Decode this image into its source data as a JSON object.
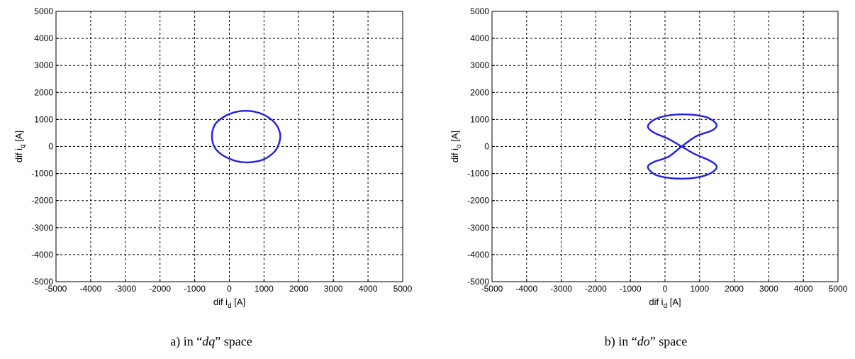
{
  "chart_data": [
    {
      "type": "line",
      "caption": {
        "prefix": "a) in “",
        "space": "dq",
        "suffix": "” space"
      },
      "xlabel": {
        "main": "dif i",
        "sub": "d",
        "unit": " [A]"
      },
      "ylabel": {
        "main": "dif i",
        "sub": "q",
        "unit": " [A]"
      },
      "xlim": [
        -5000,
        5000
      ],
      "ylim": [
        -5000,
        5000
      ],
      "xticks": [
        -5000,
        -4000,
        -3000,
        -2000,
        -1000,
        0,
        1000,
        2000,
        3000,
        4000,
        5000
      ],
      "yticks": [
        -5000,
        -4000,
        -3000,
        -2000,
        -1000,
        0,
        1000,
        2000,
        3000,
        4000,
        5000
      ],
      "grid": true,
      "series": [
        {
          "color": "#1f1fe6",
          "x": [
            1470,
            1435,
            1335,
            1180,
            985,
            750,
            490,
            230,
            -20,
            -240,
            -400,
            -480,
            -500,
            -480,
            -400,
            -240,
            -20,
            230,
            490,
            750,
            985,
            1180,
            1335,
            1435,
            1470
          ],
          "y": [
            380,
            610,
            840,
            1030,
            1180,
            1280,
            1320,
            1290,
            1190,
            1030,
            840,
            610,
            380,
            150,
            -80,
            -280,
            -440,
            -550,
            -590,
            -560,
            -480,
            -330,
            -140,
            120,
            380
          ]
        }
      ]
    },
    {
      "type": "line",
      "caption": {
        "prefix": "b) in “",
        "space": "do",
        "suffix": "” space"
      },
      "xlabel": {
        "main": "dif i",
        "sub": "d",
        "unit": " [A]"
      },
      "ylabel": {
        "main": "dif i",
        "sub": "o",
        "unit": " [A]"
      },
      "xlim": [
        -5000,
        5000
      ],
      "ylim": [
        -5000,
        5000
      ],
      "xticks": [
        -5000,
        -4000,
        -3000,
        -2000,
        -1000,
        0,
        1000,
        2000,
        3000,
        4000,
        5000
      ],
      "yticks": [
        -5000,
        -4000,
        -3000,
        -2000,
        -1000,
        0,
        1000,
        2000,
        3000,
        4000,
        5000
      ],
      "grid": true,
      "series": [
        {
          "color": "#1f1fe6",
          "x": [
            480,
            900,
            1300,
            1470,
            1470,
            1250,
            900,
            500,
            100,
            -250,
            -460,
            -480,
            -300,
            100,
            480,
            860,
            1260,
            1470,
            1470,
            1250,
            900,
            500,
            100,
            -250,
            -460,
            -480,
            -300,
            100,
            480
          ],
          "y": [
            0,
            380,
            560,
            700,
            860,
            1060,
            1160,
            1190,
            1150,
            1030,
            840,
            680,
            500,
            280,
            0,
            -280,
            -500,
            -680,
            -840,
            -1030,
            -1150,
            -1190,
            -1160,
            -1060,
            -860,
            -700,
            -560,
            -380,
            0
          ]
        }
      ]
    }
  ]
}
